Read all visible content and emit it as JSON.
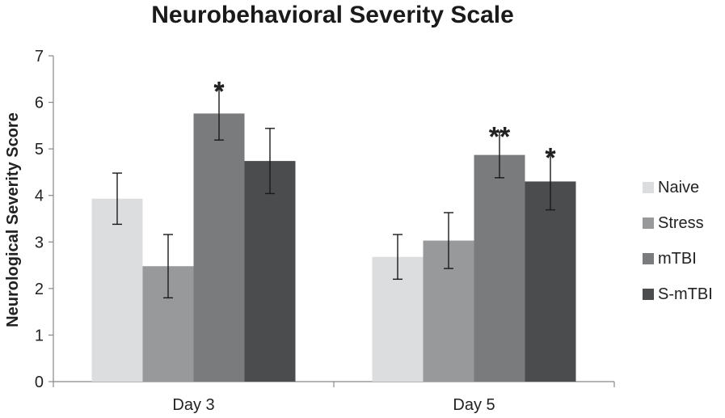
{
  "chart_data": {
    "type": "bar",
    "title": "Neurobehavioral Severity Scale",
    "xlabel": "",
    "ylabel": "Neurological Severity Score",
    "ylim": [
      0,
      7
    ],
    "yticks": [
      0,
      1,
      2,
      3,
      4,
      5,
      6,
      7
    ],
    "grid": false,
    "legend_position": "right",
    "categories": [
      "Day 3",
      "Day 5"
    ],
    "series": [
      {
        "name": "Naive",
        "color": "#dcdddf",
        "values": [
          3.93,
          2.68
        ],
        "errors": [
          0.55,
          0.48
        ],
        "annotations": [
          "",
          ""
        ]
      },
      {
        "name": "Stress",
        "color": "#98999b",
        "values": [
          2.48,
          3.03
        ],
        "errors": [
          0.68,
          0.6
        ],
        "annotations": [
          "",
          ""
        ]
      },
      {
        "name": "mTBI",
        "color": "#7a7b7d",
        "values": [
          5.76,
          4.87
        ],
        "errors": [
          0.57,
          0.49
        ],
        "annotations": [
          "*",
          "**"
        ]
      },
      {
        "name": "S-mTBI",
        "color": "#4b4c4e",
        "values": [
          4.74,
          4.3
        ],
        "errors": [
          0.7,
          0.61
        ],
        "annotations": [
          "",
          "*"
        ]
      }
    ]
  }
}
